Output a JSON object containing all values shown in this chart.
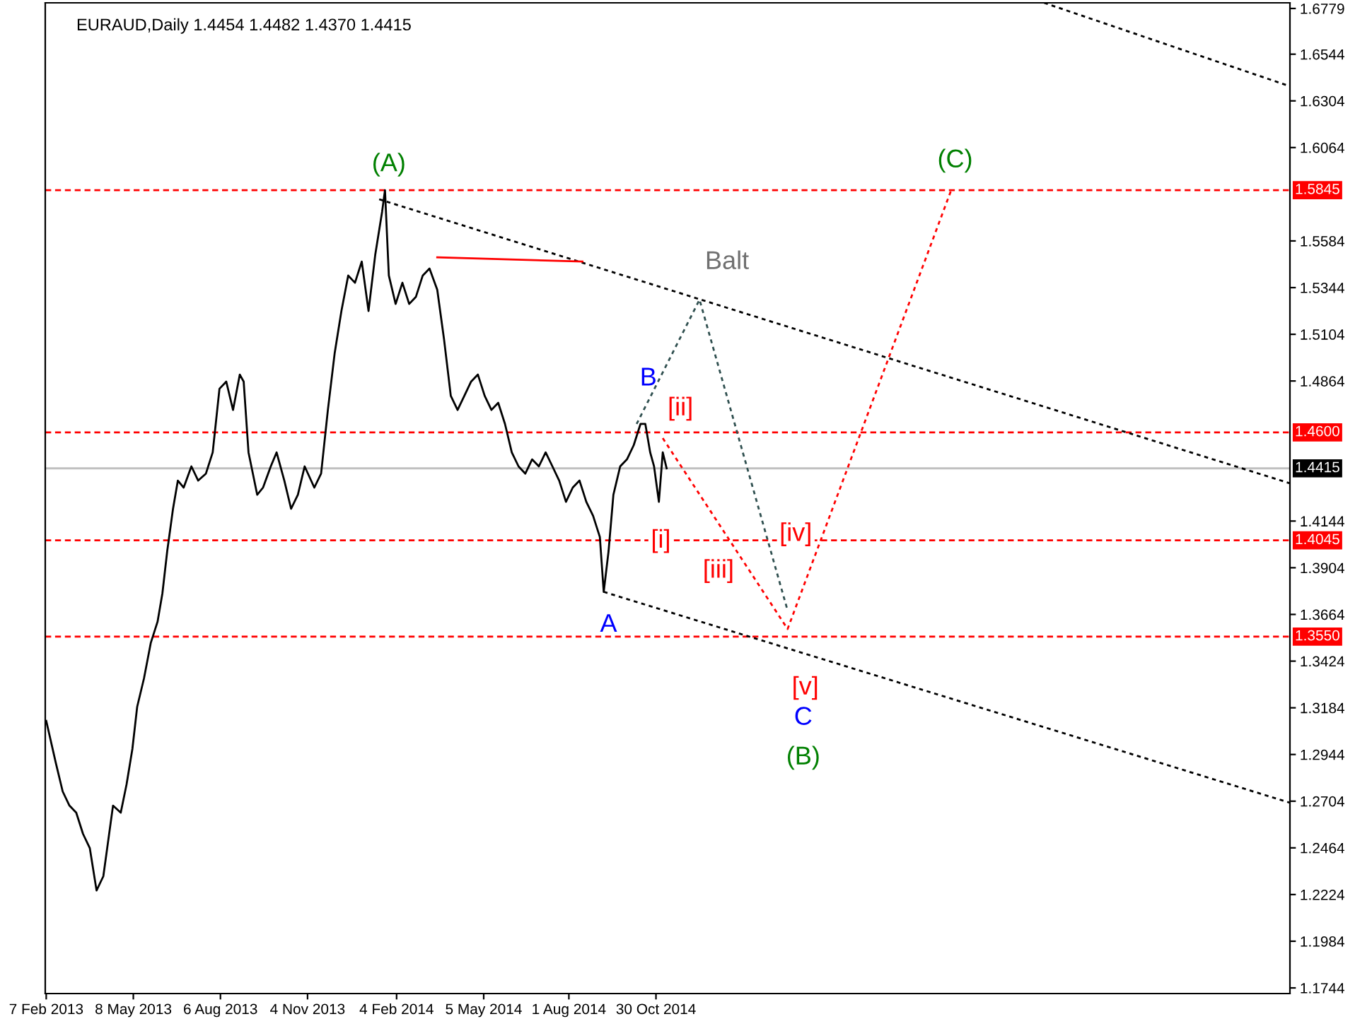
{
  "chart_data": {
    "type": "line",
    "title": "EURAUD,Daily 1.4454 1.4482 1.4370 1.4415",
    "xlim": [
      "2013-02-06",
      "2016-08-15"
    ],
    "ylim": [
      1.1715,
      1.6808
    ],
    "xticks": [
      {
        "value": "2013-02-07",
        "label": "7 Feb 2013"
      },
      {
        "value": "2013-05-08",
        "label": "8 May 2013"
      },
      {
        "value": "2013-08-06",
        "label": "6 Aug 2013"
      },
      {
        "value": "2013-11-04",
        "label": "4 Nov 2013"
      },
      {
        "value": "2014-02-04",
        "label": "4 Feb 2014"
      },
      {
        "value": "2014-05-05",
        "label": "5 May 2014"
      },
      {
        "value": "2014-08-01",
        "label": "1 Aug 2014"
      },
      {
        "value": "2014-10-30",
        "label": "30 Oct 2014"
      }
    ],
    "yticks": [
      1.6779,
      1.6544,
      1.6304,
      1.6064,
      1.5584,
      1.5344,
      1.5104,
      1.4864,
      1.4144,
      1.3904,
      1.3664,
      1.3424,
      1.3184,
      1.2944,
      1.2704,
      1.2464,
      1.2224,
      1.1984,
      1.1744
    ],
    "grid": false,
    "legend": false,
    "series": [
      {
        "color": "#000000",
        "line_style": "solid",
        "x": [
          "2013-02-07",
          "2013-02-17",
          "2013-02-24",
          "2013-03-03",
          "2013-03-10",
          "2013-03-17",
          "2013-03-24",
          "2013-03-31",
          "2013-04-07",
          "2013-04-11",
          "2013-04-17",
          "2013-04-25",
          "2013-05-01",
          "2013-05-07",
          "2013-05-12",
          "2013-05-19",
          "2013-05-26",
          "2013-06-02",
          "2013-06-07",
          "2013-06-12",
          "2013-06-18",
          "2013-06-23",
          "2013-06-29",
          "2013-07-07",
          "2013-07-14",
          "2013-07-22",
          "2013-07-29",
          "2013-08-05",
          "2013-08-12",
          "2013-08-19",
          "2013-08-26",
          "2013-08-30",
          "2013-09-04",
          "2013-09-13",
          "2013-09-19",
          "2013-09-27",
          "2013-10-03",
          "2013-10-11",
          "2013-10-18",
          "2013-10-25",
          "2013-11-01",
          "2013-11-11",
          "2013-11-18",
          "2013-11-25",
          "2013-12-02",
          "2013-12-09",
          "2013-12-16",
          "2013-12-23",
          "2013-12-30",
          "2014-01-06",
          "2014-01-13",
          "2014-01-20",
          "2014-01-23",
          "2014-01-27",
          "2014-02-03",
          "2014-02-10",
          "2014-02-17",
          "2014-02-24",
          "2014-03-03",
          "2014-03-10",
          "2014-03-18",
          "2014-03-25",
          "2014-04-01",
          "2014-04-08",
          "2014-04-15",
          "2014-04-22",
          "2014-04-29",
          "2014-05-06",
          "2014-05-13",
          "2014-05-20",
          "2014-05-27",
          "2014-06-03",
          "2014-06-10",
          "2014-06-17",
          "2014-06-24",
          "2014-07-01",
          "2014-07-08",
          "2014-07-15",
          "2014-07-22",
          "2014-07-29",
          "2014-08-05",
          "2014-08-12",
          "2014-08-19",
          "2014-08-26",
          "2014-09-02",
          "2014-09-06",
          "2014-09-11",
          "2014-09-16",
          "2014-09-23",
          "2014-09-30",
          "2014-10-07",
          "2014-10-14",
          "2014-10-19",
          "2014-10-24",
          "2014-10-28",
          "2014-11-02",
          "2014-11-06",
          "2014-11-10"
        ],
        "values": [
          1.3117,
          1.2899,
          1.2754,
          1.2681,
          1.2645,
          1.2536,
          1.2463,
          1.2245,
          1.2318,
          1.2463,
          1.2681,
          1.2645,
          1.279,
          1.2972,
          1.319,
          1.3335,
          1.3517,
          1.3626,
          1.3771,
          1.3989,
          1.4207,
          1.4352,
          1.4316,
          1.4425,
          1.4352,
          1.4388,
          1.4497,
          1.4824,
          1.4861,
          1.4715,
          1.4897,
          1.4861,
          1.4497,
          1.4279,
          1.4316,
          1.4425,
          1.4497,
          1.4352,
          1.4207,
          1.4279,
          1.4425,
          1.4316,
          1.4388,
          1.4715,
          1.5006,
          1.5224,
          1.5406,
          1.5369,
          1.5478,
          1.5224,
          1.5515,
          1.5733,
          1.5845,
          1.5406,
          1.526,
          1.5369,
          1.526,
          1.5297,
          1.5406,
          1.5442,
          1.5333,
          1.5079,
          1.4788,
          1.4715,
          1.4788,
          1.4861,
          1.4897,
          1.4788,
          1.4715,
          1.4752,
          1.4643,
          1.4497,
          1.4425,
          1.4388,
          1.4461,
          1.4425,
          1.4497,
          1.4425,
          1.4352,
          1.4243,
          1.4316,
          1.4352,
          1.4243,
          1.4171,
          1.4062,
          1.378,
          1.3989,
          1.4279,
          1.4425,
          1.4461,
          1.4534,
          1.4643,
          1.4643,
          1.4497,
          1.4425,
          1.4243,
          1.4497,
          1.4415
        ]
      },
      {
        "color": "#000000",
        "line_style": "dotted",
        "x": [
          "2014-01-17",
          "2016-08-15"
        ],
        "values": [
          1.5798,
          1.4338
        ]
      },
      {
        "color": "#000000",
        "line_style": "dotted",
        "x": [
          "2014-09-06",
          "2016-08-15"
        ],
        "values": [
          1.378,
          1.2696
        ]
      },
      {
        "color": "#000000",
        "line_style": "dotted",
        "x": [
          "2015-12-05",
          "2016-08-15"
        ],
        "values": [
          1.6808,
          1.6379
        ]
      },
      {
        "color": "#2f4f4f",
        "line_style": "dotted",
        "x": [
          "2014-10-10",
          "2014-12-14",
          "2015-03-15"
        ],
        "values": [
          1.4643,
          1.5282,
          1.3684
        ]
      },
      {
        "color": "#ff0000",
        "line_style": "dotted",
        "x": [
          "2014-11-06",
          "2015-03-15",
          "2015-08-31"
        ],
        "values": [
          1.457,
          1.3589,
          1.5845
        ]
      },
      {
        "color": "#ff0000",
        "line_style": "solid",
        "x": [
          "2014-03-18",
          "2014-08-15"
        ],
        "values": [
          1.55,
          1.5478
        ]
      }
    ],
    "ref_lines": [
      {
        "axis": "y",
        "value": 1.5845,
        "label": "1.5845",
        "color": "#ff0000",
        "line_style": "dashed"
      },
      {
        "axis": "y",
        "value": 1.46,
        "label": "1.4600",
        "color": "#ff0000",
        "line_style": "dashed"
      },
      {
        "axis": "y",
        "value": 1.4415,
        "label": "1.4415",
        "color": "#c0c0c0",
        "line_style": "solid"
      },
      {
        "axis": "y",
        "value": 1.4045,
        "label": "1.4045",
        "color": "#ff0000",
        "line_style": "dashed"
      },
      {
        "axis": "y",
        "value": 1.355,
        "label": "1.3550",
        "color": "#ff0000",
        "line_style": "dashed"
      }
    ],
    "annotations": [
      {
        "text": "(A)",
        "x": "2014-01-27",
        "y": 1.5845
      },
      {
        "text": "(C)",
        "x": "2015-08-31",
        "y": 1.5845
      },
      {
        "text": "Balt",
        "x": "2014-12-14",
        "y": 1.5282
      },
      {
        "text": "B",
        "x": "2014-10-14",
        "y": 1.4643
      },
      {
        "text": "[ii]",
        "x": "2014-11-06",
        "y": 1.457
      },
      {
        "text": "[i]",
        "x": "2014-11-02",
        "y": 1.4243
      },
      {
        "text": "[iv]",
        "x": "2015-02-21",
        "y": 1.4076
      },
      {
        "text": "[iii]",
        "x": "2015-02-04",
        "y": 1.3887
      },
      {
        "text": "A",
        "x": "2014-09-11",
        "y": 1.378
      },
      {
        "text": "[v]",
        "x": "2015-03-15",
        "y": 1.3589
      },
      "C",
      "(B)"
    ]
  }
}
